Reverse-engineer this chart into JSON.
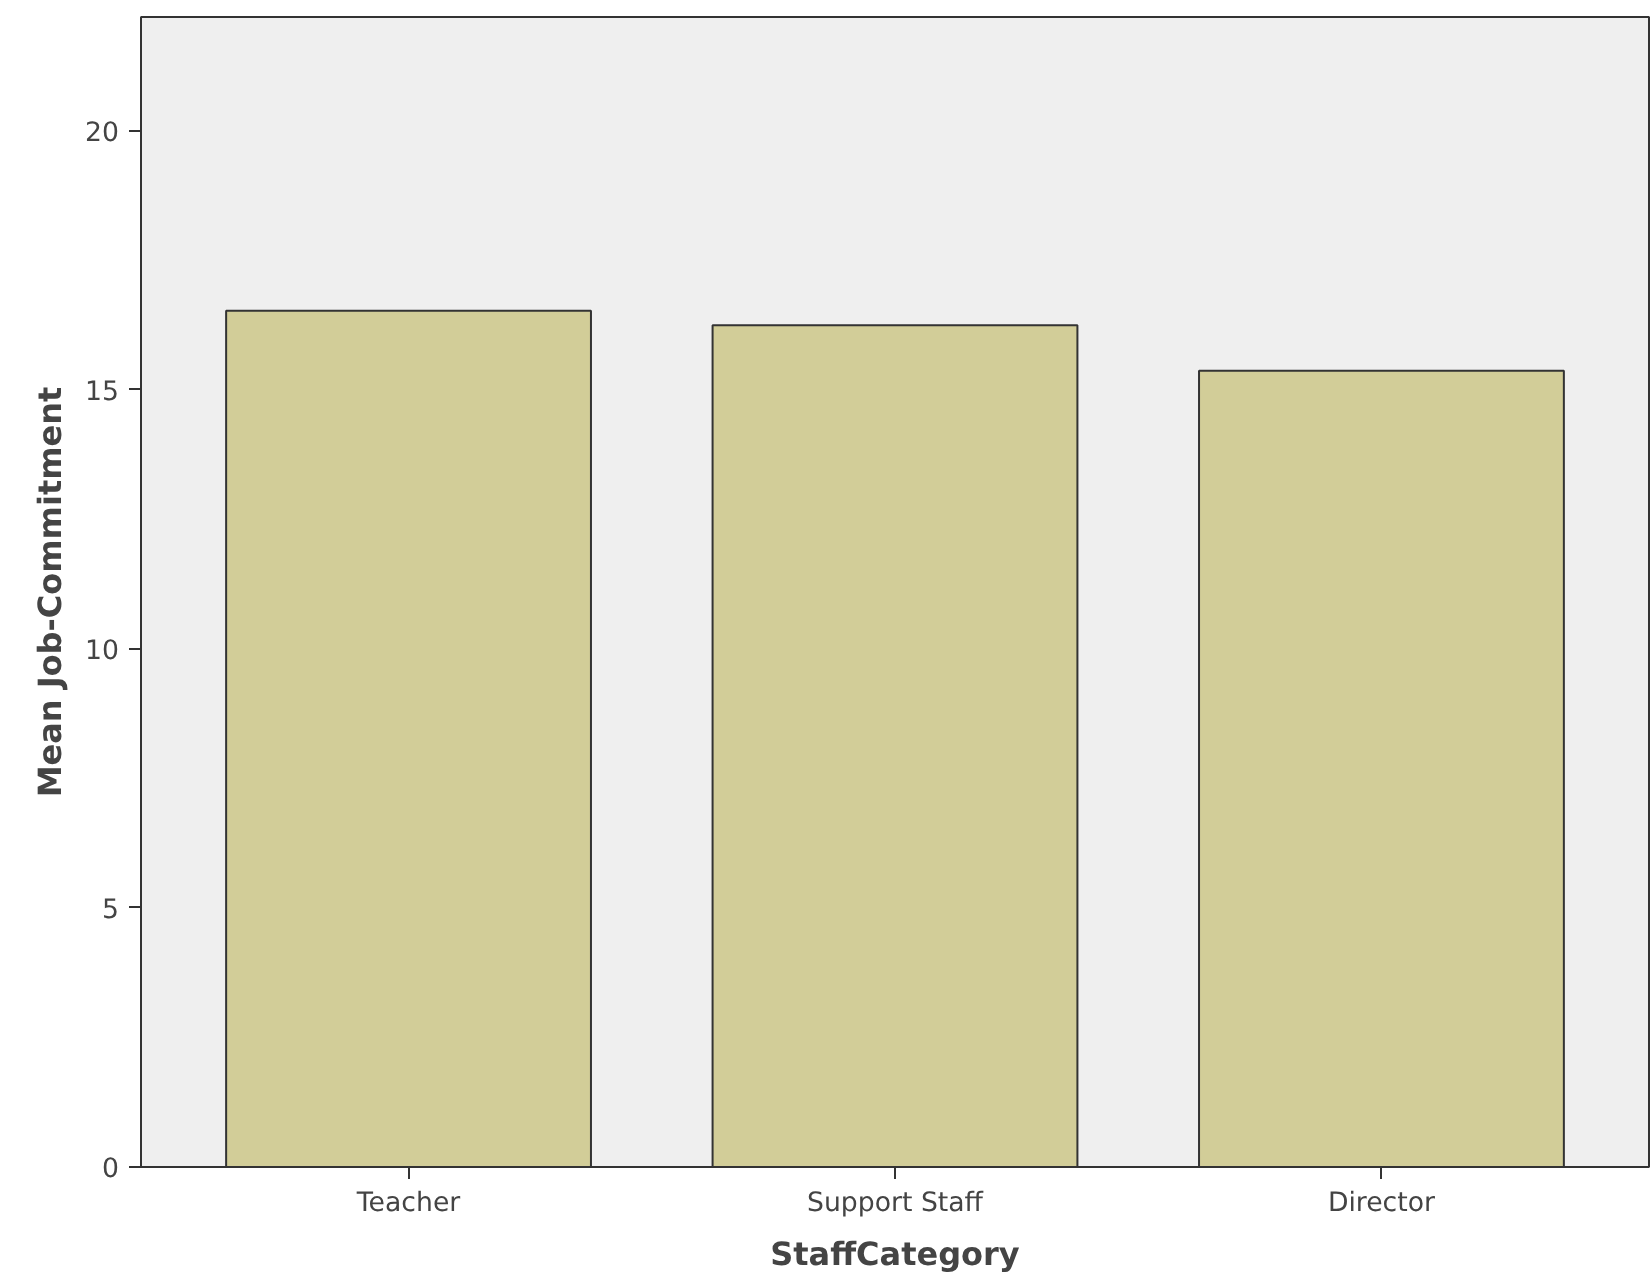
{
  "chart_data": {
    "type": "bar",
    "xlabel": "StaffCategory",
    "ylabel": "Mean Job-Commitment",
    "categories": [
      "Teacher",
      "Support Staff",
      "Director"
    ],
    "values": [
      16.53,
      16.25,
      15.37
    ],
    "color": "#d2cd98",
    "ylim": [
      0,
      22.2
    ],
    "yticks": [
      0,
      5,
      10,
      15,
      20
    ],
    "grid": false
  }
}
